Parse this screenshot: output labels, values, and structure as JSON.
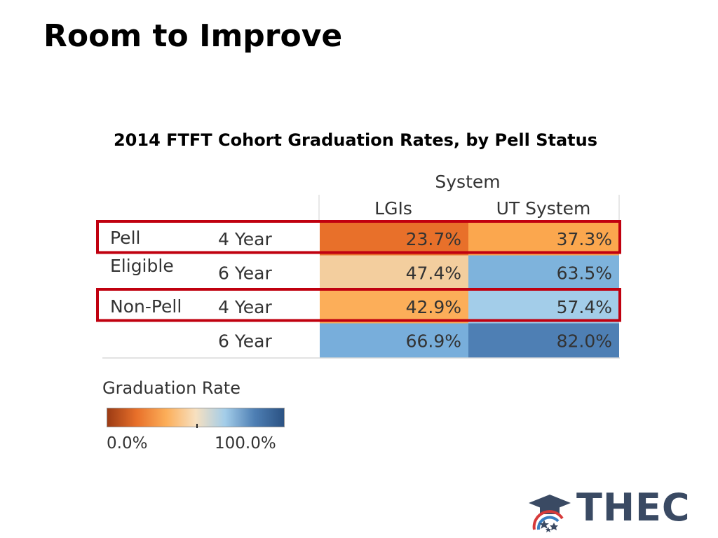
{
  "slide": {
    "title": "Room to Improve"
  },
  "chart_data": {
    "type": "heatmap",
    "title": "2014 FTFT Cohort Graduation Rates, by Pell Status",
    "column_group_header": "System",
    "columns": [
      "LGIs",
      "UT System"
    ],
    "row_groups": [
      {
        "label_line1": "Pell",
        "label_line2": "Eligible",
        "rows": [
          "4 Year",
          "6 Year"
        ]
      },
      {
        "label_line1": "Non-Pell",
        "label_line2": "",
        "rows": [
          "4 Year",
          "6 Year"
        ]
      }
    ],
    "rows": [
      {
        "group": "Pell Eligible",
        "period": "4 Year",
        "values": [
          23.7,
          37.3
        ],
        "labels": [
          "23.7%",
          "37.3%"
        ],
        "highlighted": true
      },
      {
        "group": "Pell Eligible",
        "period": "6 Year",
        "values": [
          47.4,
          63.5
        ],
        "labels": [
          "47.4%",
          "63.5%"
        ],
        "highlighted": false
      },
      {
        "group": "Non-Pell",
        "period": "4 Year",
        "values": [
          42.9,
          57.4
        ],
        "labels": [
          "42.9%",
          "57.4%"
        ],
        "highlighted": true
      },
      {
        "group": "Non-Pell",
        "period": "6 Year",
        "values": [
          66.9,
          82.0
        ],
        "labels": [
          "66.9%",
          "82.0%"
        ],
        "highlighted": false
      }
    ],
    "cell_colors": [
      [
        "#e8702a",
        "#fba74e"
      ],
      [
        "#f3ce9e",
        "#7eb3dc"
      ],
      [
        "#fcae59",
        "#a3cde9"
      ],
      [
        "#78aedb",
        "#4e7fb4"
      ]
    ],
    "highlight_color": "#c0000f",
    "legend": {
      "title": "Graduation Rate",
      "min_label": "0.0%",
      "max_label": "100.0%",
      "range": [
        0,
        100
      ],
      "gradient_stops": [
        "#9c3b14",
        "#e8702a",
        "#fcae59",
        "#f7e0c0",
        "#a3cde9",
        "#4e7fb4",
        "#2b5283"
      ]
    }
  },
  "logo": {
    "text": "THEC",
    "icon": "graduation-cap-stars-icon",
    "brand_color": "#3a4a63",
    "accent_red": "#d63a3a",
    "accent_blue": "#3a7fc1"
  }
}
